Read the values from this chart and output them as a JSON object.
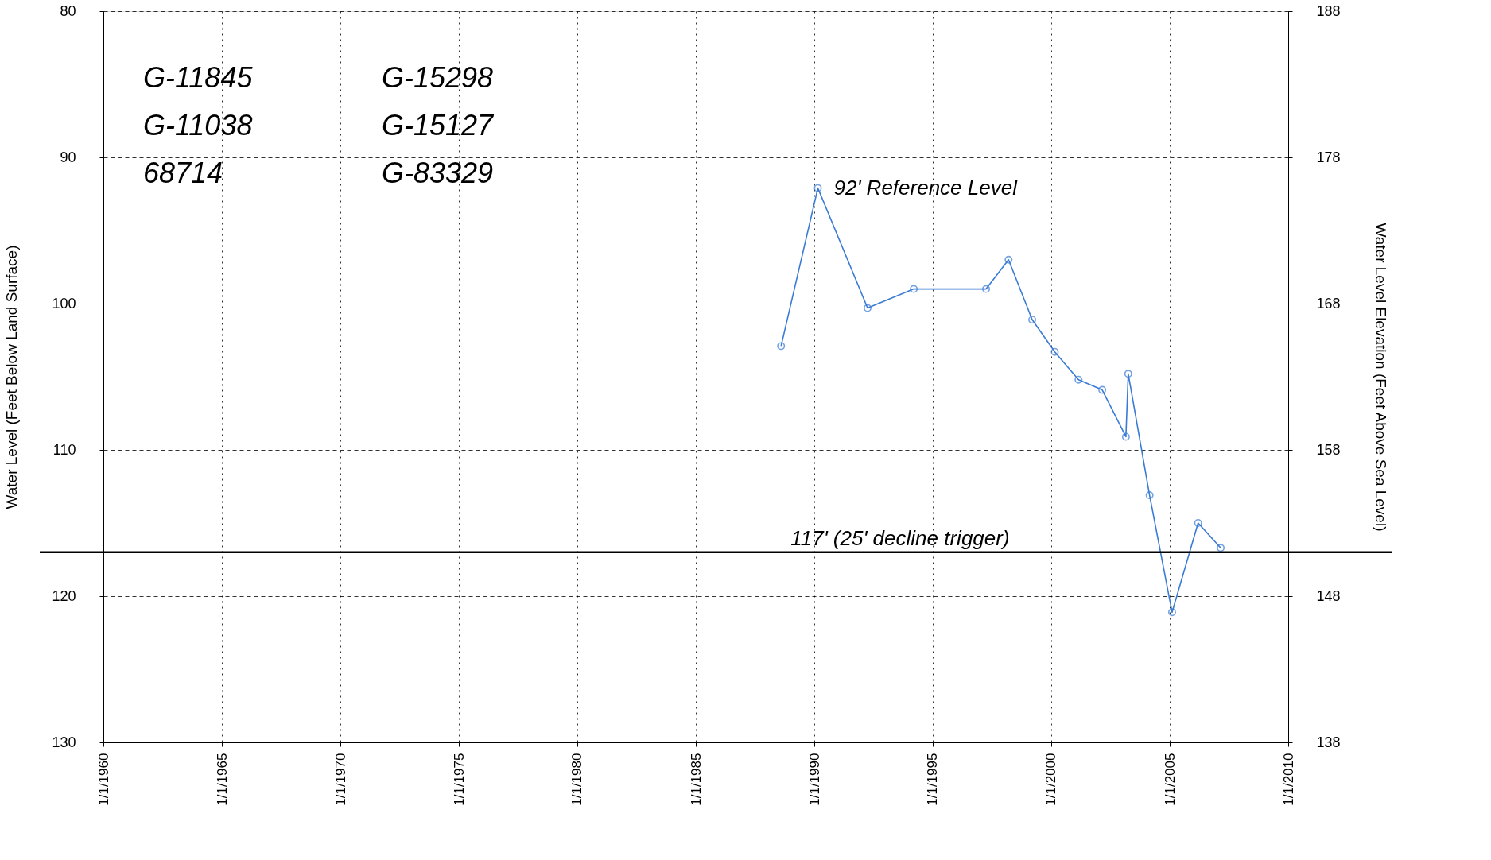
{
  "chart_data": {
    "type": "line",
    "xlabel": null,
    "ylabel": "Water Level  (Feet Below Land Surface)",
    "y2label": "Water Level Elevation  (Feet Above Sea Level)",
    "x": [
      "1988-08-07",
      "1990-02-25",
      "1992-04-01",
      "1994-03-14",
      "1997-04-02",
      "1998-03-14",
      "1999-03-14",
      "2000-02-25",
      "2001-02-25",
      "2002-02-25",
      "2003-02-25",
      "2003-04-02",
      "2004-02-25",
      "2005-02-06",
      "2006-03-14",
      "2007-02-25"
    ],
    "series": [
      {
        "color": "#3a7bd5",
        "values": [
          102.9,
          92.1,
          100.3,
          99.0,
          99.0,
          97.0,
          101.1,
          103.3,
          105.2,
          105.9,
          109.1,
          104.8,
          113.1,
          121.1,
          115.0,
          116.7
        ]
      }
    ],
    "xlim": [
      "1960-01-01",
      "2010-01-01"
    ],
    "xticks": [
      {
        "value": "1960-01-01",
        "label": "1/1/1960"
      },
      {
        "value": "1965-01-01",
        "label": "1/1/1965"
      },
      {
        "value": "1970-01-01",
        "label": "1/1/1970"
      },
      {
        "value": "1975-01-01",
        "label": "1/1/1975"
      },
      {
        "value": "1980-01-01",
        "label": "1/1/1980"
      },
      {
        "value": "1985-01-01",
        "label": "1/1/1985"
      },
      {
        "value": "1990-01-01",
        "label": "1/1/1990"
      },
      {
        "value": "1995-01-01",
        "label": "1/1/1995"
      },
      {
        "value": "2000-01-01",
        "label": "1/1/2000"
      },
      {
        "value": "2005-01-01",
        "label": "1/1/2005"
      },
      {
        "value": "2010-01-01",
        "label": "1/1/2010"
      }
    ],
    "ylim": [
      130,
      80
    ],
    "yticks": [
      80,
      90,
      100,
      110,
      120,
      130
    ],
    "y2lim": [
      138,
      188
    ],
    "y2ticks": [
      138,
      148,
      158,
      168,
      178,
      188
    ],
    "ref_lines": [
      {
        "axis": "y",
        "value": 117,
        "label": "117' (25' decline trigger)",
        "color": "#000000",
        "line_style": "solid"
      }
    ],
    "annotations": [
      "G-11845",
      "G-11038",
      "68714",
      "G-15298",
      "G-15127",
      "G-83329",
      {
        "text": "92' Reference Level",
        "x": "1990-02-25",
        "y": 92.1
      }
    ],
    "grid": true,
    "marker": "circle",
    "line_style": "solid"
  }
}
